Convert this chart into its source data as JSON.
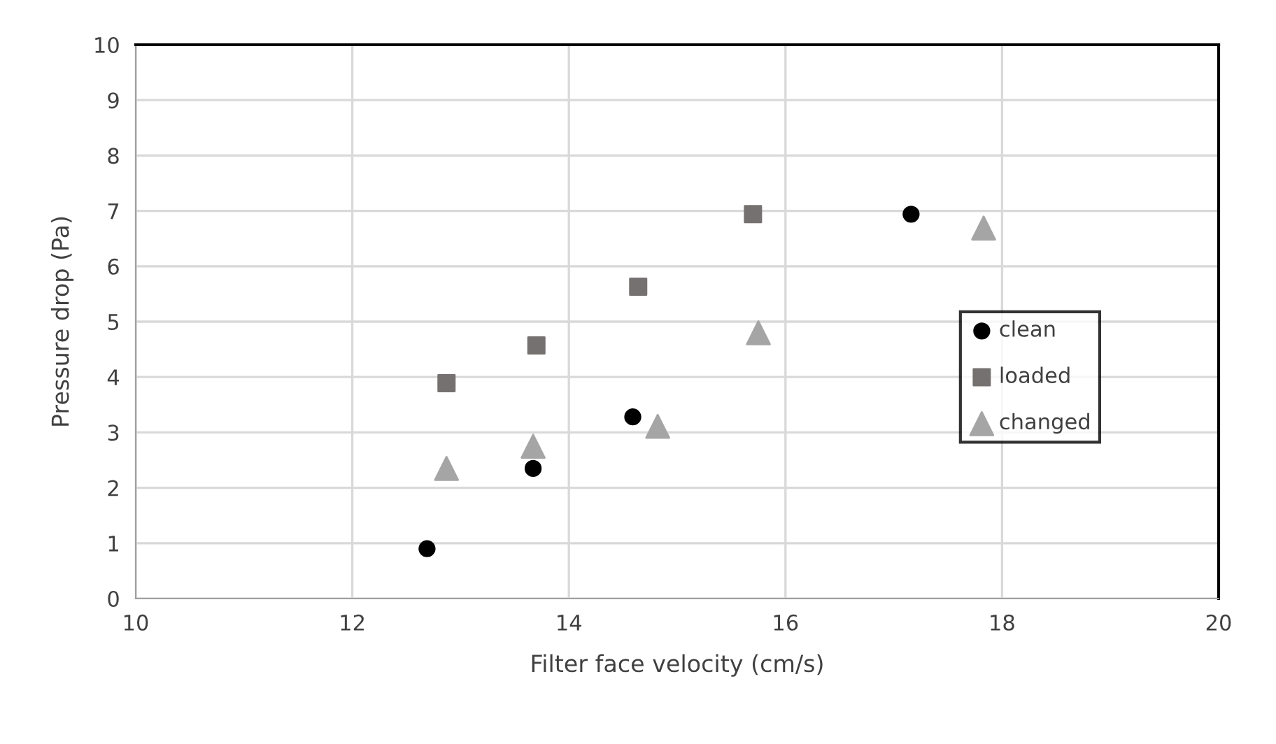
{
  "chart_data": {
    "type": "scatter",
    "xlabel": "Filter face velocity (cm/s)",
    "ylabel": "Pressure drop (Pa)",
    "xlim": [
      10,
      20
    ],
    "xticks": [
      10,
      12,
      14,
      16,
      18,
      20
    ],
    "ylim": [
      0,
      10
    ],
    "yticks": [
      0,
      1,
      2,
      3,
      4,
      5,
      6,
      7,
      8,
      9,
      10
    ],
    "grid": true,
    "legend": "right",
    "series": [
      {
        "name": "clean",
        "color": "#000000",
        "marker": "circle",
        "x": [
          12.69,
          13.67,
          14.59,
          17.16
        ],
        "values": [
          0.9,
          2.35,
          3.28,
          6.94
        ]
      },
      {
        "name": "loaded",
        "color": "#767171",
        "marker": "square",
        "x": [
          12.87,
          13.7,
          14.64,
          15.7
        ],
        "values": [
          3.89,
          4.57,
          5.63,
          6.94
        ]
      },
      {
        "name": "changed",
        "color": "#a5a5a5",
        "marker": "triangle",
        "x": [
          12.87,
          13.67,
          14.82,
          15.75,
          17.83
        ],
        "values": [
          2.35,
          2.75,
          3.11,
          4.8,
          6.69
        ]
      }
    ]
  }
}
